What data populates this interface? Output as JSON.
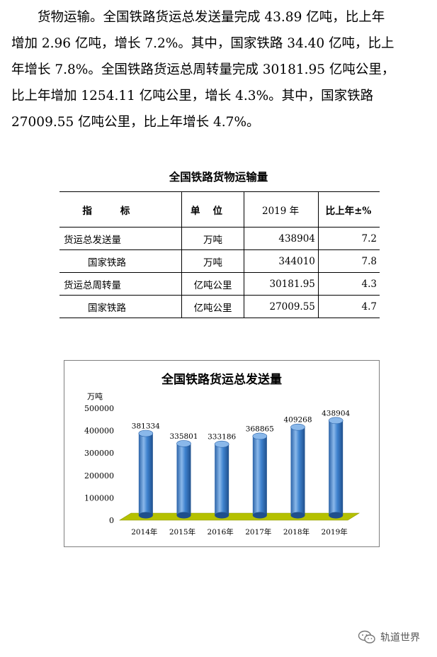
{
  "paragraph": {
    "lines": [
      "货物运输。全国铁路货运总发送量完成 43.89 亿吨，比上年",
      "增加 2.96 亿吨，增长 7.2%。其中，国家铁路 34.40 亿吨，比上",
      "年增长 7.8%。全国铁路货运总周转量完成 30181.95 亿吨公里，",
      "比上年增加 1254.11 亿吨公里，增长 4.3%。其中，国家铁路",
      "27009.55 亿吨公里，比上年增长 4.7%。"
    ]
  },
  "table": {
    "title": "全国铁路货物运输量",
    "headers": [
      "指标",
      "单位",
      "2019 年",
      "比上年±%"
    ],
    "rows": [
      {
        "indicator": "货运总发送量",
        "unit": "万吨",
        "value": "438904",
        "change": "7.2"
      },
      {
        "indicator": "国家铁路",
        "unit": "万吨",
        "value": "344010",
        "change": "7.8"
      },
      {
        "indicator": "货运总周转量",
        "unit": "亿吨公里",
        "value": "30181.95",
        "change": "4.3"
      },
      {
        "indicator": "国家铁路",
        "unit": "亿吨公里",
        "value": "27009.55",
        "change": "4.7"
      }
    ]
  },
  "chart_data": {
    "type": "bar",
    "title": "全国铁路货运总发送量",
    "ylabel": "万吨",
    "xlabel": "",
    "categories": [
      "2014年",
      "2015年",
      "2016年",
      "2017年",
      "2018年",
      "2019年"
    ],
    "values": [
      381334,
      335801,
      333186,
      368865,
      409268,
      438904
    ],
    "data_labels": [
      "381334",
      "335801",
      "333186",
      "368865",
      "409268",
      "438904"
    ],
    "yticks": [
      "0",
      "100000",
      "200000",
      "300000",
      "400000",
      "500000"
    ],
    "ylim": [
      0,
      500000
    ],
    "grid": false,
    "legend": "none",
    "bar_style": "3d-cylinder",
    "colors": {
      "bar": "#3a7cc7",
      "bar_light": "#8ab8ea",
      "floor": "#b5c100",
      "floor_dark": "#8e9800"
    }
  },
  "watermark": {
    "text": "轨道世界",
    "icon": "wechat-icon"
  }
}
